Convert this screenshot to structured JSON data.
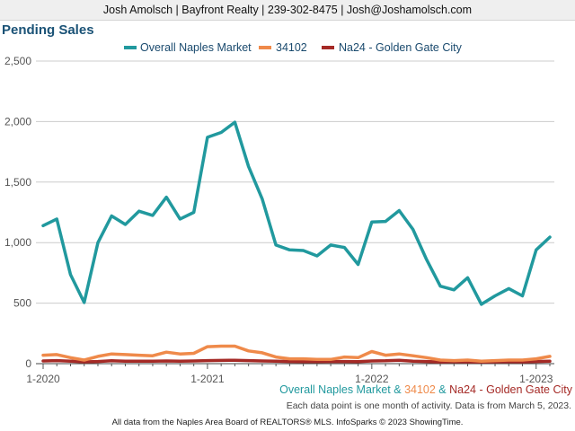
{
  "header": {
    "contact_line": "Josh Amolsch | Bayfront Realty | 239-302-8475 | Josh@Joshamolsch.com"
  },
  "footnotes": {
    "series_line": {
      "part1": "Overall Naples Market",
      "sep1": " & ",
      "part2": "34102",
      "sep2": " & ",
      "part3": "Na24 - Golden Gate City"
    },
    "info": "Each data point is one month of activity. Data is from March 5, 2023.",
    "credit": "All data from the Naples Area Board of REALTORS® MLS. InfoSparks © 2023 ShowingTime."
  },
  "colors": {
    "series1": "#21999e",
    "series2": "#ef8a4a",
    "series3": "#a52a26",
    "title": "#1a5276",
    "grid": "#cccccc"
  },
  "chart_data": {
    "type": "line",
    "title": "Pending Sales",
    "xlabel": "",
    "ylabel": "",
    "ylim": [
      0,
      2500
    ],
    "y_ticks": [
      "0",
      "500",
      "1,000",
      "1,500",
      "2,000",
      "2,500"
    ],
    "x_tick_labels": [
      "1-2020",
      "1-2021",
      "1-2022",
      "1-2023"
    ],
    "x": [
      "1-2020",
      "2-2020",
      "3-2020",
      "4-2020",
      "5-2020",
      "6-2020",
      "7-2020",
      "8-2020",
      "9-2020",
      "10-2020",
      "11-2020",
      "12-2020",
      "1-2021",
      "2-2021",
      "3-2021",
      "4-2021",
      "5-2021",
      "6-2021",
      "7-2021",
      "8-2021",
      "9-2021",
      "10-2021",
      "11-2021",
      "12-2021",
      "1-2022",
      "2-2022",
      "3-2022",
      "4-2022",
      "5-2022",
      "6-2022",
      "7-2022",
      "8-2022",
      "9-2022",
      "10-2022",
      "11-2022",
      "12-2022",
      "1-2023",
      "2-2023"
    ],
    "grid": true,
    "legend_position": "top-center",
    "series": [
      {
        "name": "Overall Naples Market",
        "values": [
          1140,
          1195,
          735,
          505,
          1000,
          1220,
          1150,
          1260,
          1225,
          1375,
          1195,
          1250,
          1870,
          1910,
          1995,
          1630,
          1360,
          980,
          940,
          935,
          890,
          980,
          960,
          820,
          1170,
          1175,
          1265,
          1110,
          860,
          640,
          610,
          710,
          490,
          560,
          620,
          560,
          940,
          1045
        ]
      },
      {
        "name": "34102",
        "values": [
          70,
          75,
          50,
          30,
          60,
          80,
          75,
          70,
          65,
          95,
          80,
          85,
          140,
          145,
          145,
          105,
          90,
          55,
          40,
          40,
          35,
          35,
          55,
          50,
          100,
          70,
          80,
          65,
          50,
          30,
          25,
          30,
          20,
          25,
          30,
          30,
          40,
          60
        ]
      },
      {
        "name": "Na24 - Golden Gate City",
        "values": [
          22,
          25,
          20,
          15,
          18,
          24,
          20,
          20,
          20,
          22,
          20,
          22,
          25,
          27,
          28,
          25,
          22,
          20,
          18,
          17,
          16,
          18,
          18,
          16,
          22,
          24,
          28,
          20,
          18,
          14,
          16,
          15,
          14,
          15,
          16,
          15,
          18,
          20
        ]
      }
    ]
  }
}
